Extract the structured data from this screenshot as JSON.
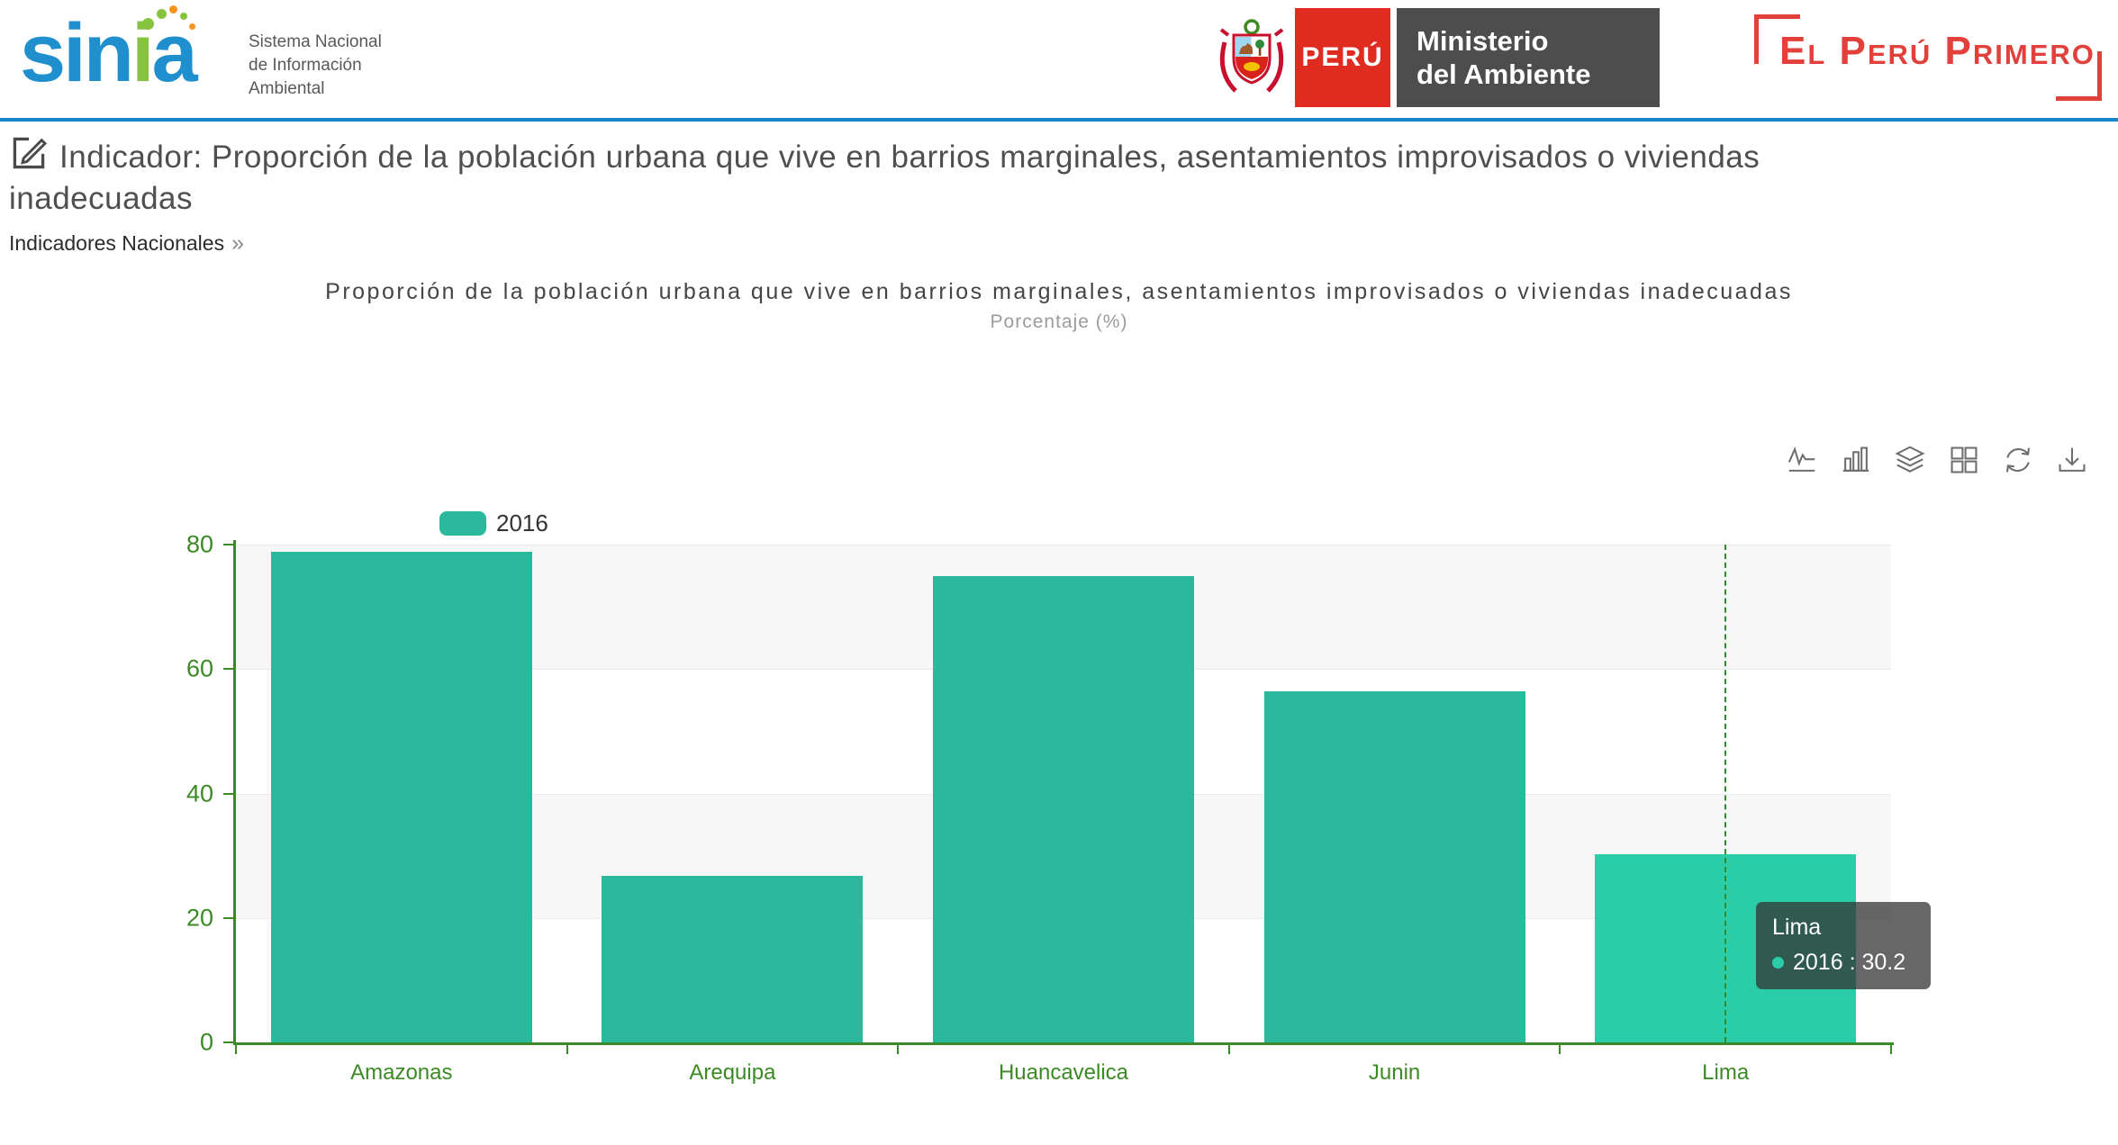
{
  "colors": {
    "brand_blue": "#1f8fce",
    "brand_green": "#86c440",
    "brand_orange": "#f7941e",
    "header_rule_blue": "#1787c8",
    "peru_red": "#e02b20",
    "ministry_gray": "#4d4d4d",
    "motto_red": "#e2403a"
  },
  "header": {
    "logo_text": {
      "part1": "sin",
      "part2": "i",
      "part3": "a"
    },
    "tagline": [
      "Sistema Nacional",
      "de Información",
      "Ambiental"
    ],
    "ministry": {
      "country": "PERÚ",
      "name": [
        "Ministerio",
        "del Ambiente"
      ]
    },
    "motto": "El Perú Primero"
  },
  "page": {
    "title": "Indicador: Proporción de la población urbana que vive en barrios marginales, asentamientos improvisados o viviendas inadecuadas",
    "breadcrumb": "Indicadores Nacionales",
    "breadcrumb_arrow": "»"
  },
  "chart_data": {
    "type": "bar",
    "title": "Proporción de la población urbana que vive en barrios marginales, asentamientos improvisados o viviendas inadecuadas",
    "subtitle": "Porcentaje (%)",
    "categories": [
      "Amazonas",
      "Arequipa",
      "Huancavelica",
      "Junin",
      "Lima"
    ],
    "series": [
      {
        "name": "2016",
        "values": [
          78.8,
          26.7,
          74.9,
          56.4,
          30.2
        ]
      }
    ],
    "xlabel": "",
    "ylabel": "",
    "ylim": [
      0,
      80
    ],
    "yticks": [
      0,
      20,
      40,
      60,
      80
    ],
    "legend": {
      "label": "2016",
      "position": "top-left"
    },
    "grid": true,
    "split_area_alternating": true,
    "highlighted_category": "Lima",
    "colors": {
      "bar": "#2ab99c",
      "bar_highlight": "#2bcca8",
      "axis": "#3c8a26",
      "split_area": "#f7f7f7",
      "gridline": "#ebebeb",
      "pointer": "#2f8b30"
    }
  },
  "tooltip": {
    "title": "Lima",
    "label": "2016",
    "separator": " : ",
    "value": "30.2"
  },
  "toolbar": {
    "tools": [
      "line",
      "bar",
      "stack",
      "tiled",
      "restore",
      "download"
    ]
  }
}
